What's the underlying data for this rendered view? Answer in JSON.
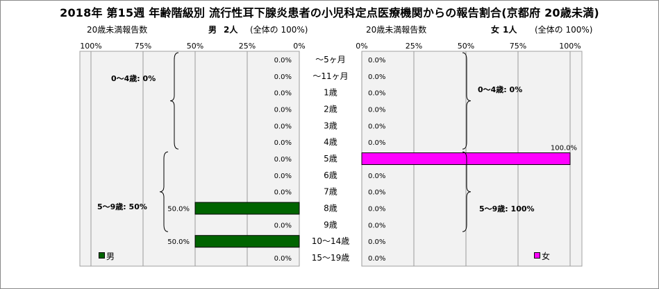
{
  "title": "2018年 第15週 年齢階級別 流行性耳下腺炎患者の小児科定点医療機関からの報告割合(京都府 20歳未満)",
  "left_header": {
    "count_label": "20歳未満報告数",
    "sex": "男",
    "total": "2人",
    "note": "(全体の 100%)"
  },
  "right_header": {
    "count_label": "20歳未満報告数",
    "sex": "女",
    "total": "1人",
    "note": "(全体の 100%)"
  },
  "colors": {
    "male": "#006400",
    "female": "#ff00ff",
    "grid": "#9a9a9a",
    "plot_bg": "#f2f2f2"
  },
  "chart_data": [
    {
      "type": "bar",
      "orientation": "horizontal",
      "direction": "right-to-left",
      "series": [
        {
          "name": "男",
          "values": [
            0,
            0,
            0,
            0,
            0,
            0,
            0,
            0,
            0,
            50,
            0,
            50,
            0
          ]
        }
      ],
      "value_labels": [
        "0.0%",
        "0.0%",
        "0.0%",
        "0.0%",
        "0.0%",
        "0.0%",
        "0.0%",
        "0.0%",
        "0.0%",
        "50.0%",
        "0.0%",
        "50.0%",
        "0.0%"
      ],
      "xlim": [
        0,
        100
      ],
      "x_ticks": [
        "100%",
        "75%",
        "50%",
        "25%",
        "0%"
      ],
      "groups": [
        {
          "label": "0～4歳: 0%",
          "from": 0,
          "to": 5
        },
        {
          "label": "5～9歳: 50%",
          "from": 6,
          "to": 10
        }
      ],
      "legend": {
        "label": "男",
        "position": "bottom-left"
      }
    },
    {
      "type": "bar",
      "orientation": "horizontal",
      "direction": "left-to-right",
      "series": [
        {
          "name": "女",
          "values": [
            0,
            0,
            0,
            0,
            0,
            0,
            100,
            0,
            0,
            0,
            0,
            0,
            0
          ]
        }
      ],
      "value_labels": [
        "0.0%",
        "0.0%",
        "0.0%",
        "0.0%",
        "0.0%",
        "0.0%",
        "100.0%",
        "0.0%",
        "0.0%",
        "0.0%",
        "0.0%",
        "0.0%",
        "0.0%"
      ],
      "xlim": [
        0,
        100
      ],
      "x_ticks": [
        "0%",
        "25%",
        "50%",
        "75%",
        "100%"
      ],
      "groups": [
        {
          "label": "0～4歳: 0%",
          "from": 0,
          "to": 5
        },
        {
          "label": "5～9歳: 100%",
          "from": 6,
          "to": 10
        }
      ],
      "legend": {
        "label": "女",
        "position": "bottom-right"
      }
    }
  ],
  "categories": [
    "～5ヶ月",
    "～11ヶ月",
    "1歳",
    "2歳",
    "3歳",
    "4歳",
    "5歳",
    "6歳",
    "7歳",
    "8歳",
    "9歳",
    "10～14歳",
    "15～19歳"
  ]
}
